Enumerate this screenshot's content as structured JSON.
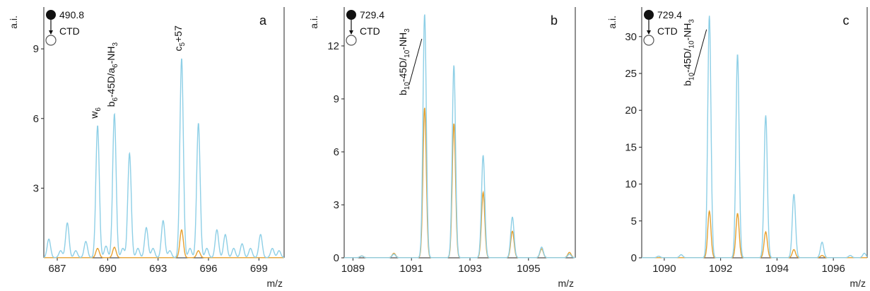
{
  "colors": {
    "series_a": "#8ecfe6",
    "series_b": "#e6a030",
    "axis": "#222222"
  },
  "chart_data": [
    {
      "type": "line",
      "panel_label": "a",
      "ylabel": "a.i.",
      "xlabel": "m/z",
      "precursor": "490.8",
      "method": "CTD",
      "ylim": [
        0,
        10.8
      ],
      "xlim": [
        686.2,
        700.5
      ],
      "yticks": [
        3,
        6,
        9
      ],
      "xticks": [
        {
          "value": 687,
          "label": "687"
        },
        {
          "value": 690,
          "label": "690"
        },
        {
          "value": 693,
          "label": "693"
        },
        {
          "value": 696,
          "label": "696"
        },
        {
          "value": 699,
          "label": "699"
        }
      ],
      "annotations": [
        {
          "main": "w",
          "sub": "6",
          "rest": "",
          "x": 689.4,
          "y": 6.0,
          "rotate": true
        },
        {
          "main": "b",
          "sub": "6",
          "rest": "-45D/a",
          "sub2": "6",
          "tail": "-NH",
          "sub3": "3",
          "x": 690.4,
          "y": 6.5,
          "rotate": true
        },
        {
          "main": "c",
          "sub": "5",
          "rest": "+57",
          "x": 694.4,
          "y": 8.9,
          "rotate": true
        }
      ],
      "series": [
        {
          "peaks": [
            [
              686.5,
              0.8
            ],
            [
              687.2,
              0.3
            ],
            [
              687.6,
              1.5
            ],
            [
              688.1,
              0.3
            ],
            [
              688.7,
              0.7
            ],
            [
              689.4,
              5.7
            ],
            [
              689.9,
              0.5
            ],
            [
              690.4,
              6.2
            ],
            [
              690.9,
              0.4
            ],
            [
              691.3,
              4.5
            ],
            [
              691.8,
              0.4
            ],
            [
              692.3,
              1.3
            ],
            [
              692.7,
              0.4
            ],
            [
              693.3,
              1.6
            ],
            [
              693.7,
              0.3
            ],
            [
              694.4,
              8.6
            ],
            [
              694.9,
              0.4
            ],
            [
              695.4,
              5.8
            ],
            [
              695.9,
              0.4
            ],
            [
              696.5,
              1.2
            ],
            [
              697.0,
              1.0
            ],
            [
              697.5,
              0.4
            ],
            [
              698.0,
              0.6
            ],
            [
              698.5,
              0.4
            ],
            [
              699.1,
              1.0
            ],
            [
              699.8,
              0.4
            ],
            [
              700.2,
              0.3
            ]
          ]
        },
        {
          "peaks": [
            [
              689.4,
              0.4
            ],
            [
              690.4,
              0.45
            ],
            [
              694.4,
              1.2
            ],
            [
              695.4,
              0.3
            ]
          ]
        }
      ]
    },
    {
      "type": "line",
      "panel_label": "b",
      "ylabel": "a.i.",
      "xlabel": "m/z",
      "precursor": "729.4",
      "method": "CTD",
      "ylim": [
        0,
        14.2
      ],
      "xlim": [
        1088.7,
        1096.6
      ],
      "yticks": [
        0,
        3,
        6,
        9,
        12
      ],
      "xticks": [
        {
          "value": 1089,
          "label": "1089"
        },
        {
          "value": 1091,
          "label": "1091"
        },
        {
          "value": 1093,
          "label": "1093"
        },
        {
          "value": 1095,
          "label": "1095"
        }
      ],
      "annotations": [
        {
          "main": "b",
          "sub": "10",
          "rest": "-45D/",
          "sub2": "10",
          "tail": "-NH",
          "sub3": "3",
          "x": 1091.45,
          "y": 12.0,
          "rotate": true,
          "leader": true
        }
      ],
      "series": [
        {
          "peaks": [
            [
              1089.3,
              0.1
            ],
            [
              1090.4,
              0.2
            ],
            [
              1091.45,
              13.8
            ],
            [
              1092.45,
              10.9
            ],
            [
              1093.45,
              5.8
            ],
            [
              1094.45,
              2.3
            ],
            [
              1095.45,
              0.6
            ],
            [
              1096.4,
              0.2
            ]
          ]
        },
        {
          "peaks": [
            [
              1089.3,
              0.1
            ],
            [
              1090.4,
              0.25
            ],
            [
              1091.45,
              8.5
            ],
            [
              1092.45,
              7.6
            ],
            [
              1093.45,
              3.7
            ],
            [
              1094.45,
              1.5
            ],
            [
              1095.45,
              0.5
            ],
            [
              1096.4,
              0.3
            ]
          ]
        }
      ]
    },
    {
      "type": "line",
      "panel_label": "c",
      "ylabel": "a.i.",
      "xlabel": "m/z",
      "precursor": "729.4",
      "method": "CTD",
      "ylim": [
        0,
        34
      ],
      "xlim": [
        1089.2,
        1097.2
      ],
      "yticks": [
        0,
        5,
        10,
        15,
        20,
        25,
        30
      ],
      "xticks": [
        {
          "value": 1090,
          "label": "1090"
        },
        {
          "value": 1092,
          "label": "1092"
        },
        {
          "value": 1094,
          "label": "1094"
        },
        {
          "value": 1096,
          "label": "1096"
        }
      ],
      "annotations": [
        {
          "main": "b",
          "sub": "10",
          "rest": "-45D/",
          "sub2": "10",
          "tail": "-NH",
          "sub3": "3",
          "x": 1091.6,
          "y": 30.0,
          "rotate": true,
          "leader": true
        }
      ],
      "series": [
        {
          "peaks": [
            [
              1089.8,
              0.2
            ],
            [
              1090.6,
              0.4
            ],
            [
              1091.6,
              32.8
            ],
            [
              1092.6,
              27.6
            ],
            [
              1093.6,
              19.3
            ],
            [
              1094.6,
              8.6
            ],
            [
              1095.6,
              2.1
            ],
            [
              1096.6,
              0.3
            ],
            [
              1097.1,
              0.6
            ]
          ]
        },
        {
          "peaks": [
            [
              1091.6,
              6.3
            ],
            [
              1092.6,
              6.0
            ],
            [
              1093.6,
              3.5
            ],
            [
              1094.6,
              1.1
            ],
            [
              1095.6,
              0.3
            ]
          ]
        }
      ]
    }
  ]
}
